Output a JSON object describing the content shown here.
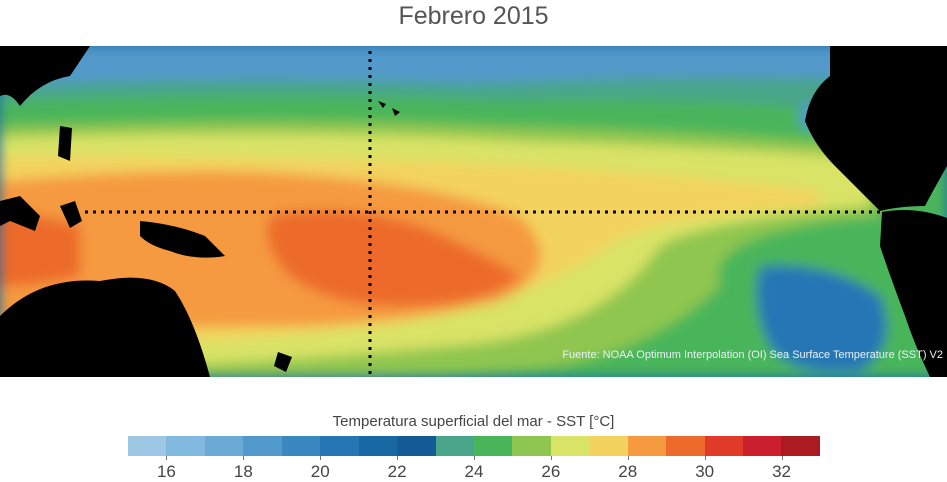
{
  "title": "Febrero 2015",
  "source": "Fuente: NOAA Optimum Interpolation (OI) Sea Surface Temperature (SST) V2",
  "colorbar": {
    "title": "Temperatura superficial del mar - SST  [°C]",
    "min": 15,
    "max": 33,
    "colors": [
      "#9dc7e4",
      "#82b9de",
      "#6aabd6",
      "#5299cb",
      "#3b88c1",
      "#2676b5",
      "#1868a4",
      "#135b94",
      "#4aa68a",
      "#49b55a",
      "#8fc64f",
      "#d9e366",
      "#f3d35e",
      "#f59a3f",
      "#ec6a2c",
      "#e03a29",
      "#cc1f2d",
      "#ad1b22"
    ],
    "ticks": [
      16,
      18,
      20,
      22,
      24,
      26,
      28,
      30,
      32
    ]
  },
  "map_elements": {
    "land_color": "#000000",
    "reference_lines": [
      "equator",
      "date-line"
    ]
  }
}
